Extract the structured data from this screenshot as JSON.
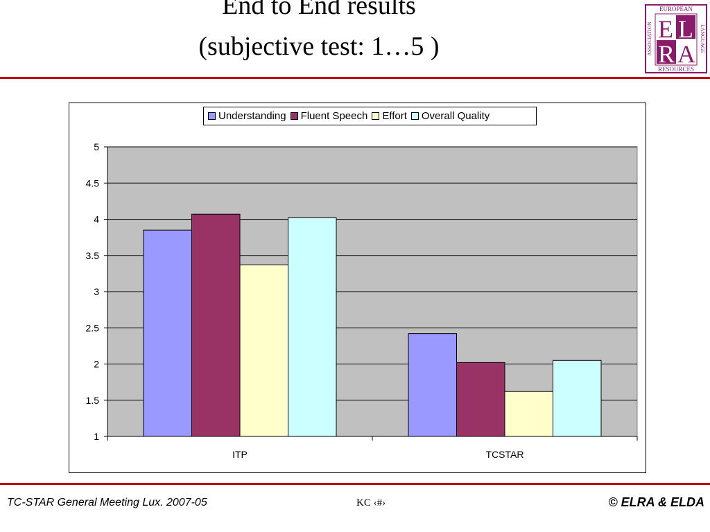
{
  "slide": {
    "title_line1": "End to End results",
    "title_line2": "(subjective test: 1…5 )"
  },
  "logo": {
    "top_text": "EUROPEAN",
    "left_text": "ASSOCIATION",
    "right_text": "LANGUAGE",
    "bottom_text": "RESOURCES",
    "letters": [
      "E",
      "L",
      "R",
      "A"
    ],
    "color": "#8b1a6b"
  },
  "footer": {
    "left": "TC-STAR General Meeting Lux. 2007-05",
    "center": "KC ‹#›",
    "right": "©  ELRA & ELDA"
  },
  "chart_data": {
    "type": "bar",
    "title": "",
    "xlabel": "",
    "ylabel": "",
    "categories": [
      "ITP",
      "TCSTAR"
    ],
    "series": [
      {
        "name": "Understanding",
        "values": [
          3.85,
          2.42
        ],
        "color": "#9999ff"
      },
      {
        "name": "Fluent Speech",
        "values": [
          4.07,
          2.02
        ],
        "color": "#993366"
      },
      {
        "name": "Effort",
        "values": [
          3.37,
          1.62
        ],
        "color": "#ffffcc"
      },
      {
        "name": "Overall Quality",
        "values": [
          4.02,
          2.05
        ],
        "color": "#ccffff"
      }
    ],
    "ylim": [
      1,
      5
    ],
    "yticks": [
      "1",
      "1.5",
      "2",
      "2.5",
      "3",
      "3.5",
      "4",
      "4.5",
      "5"
    ],
    "grid": true,
    "plot_background": "#c0c0c0",
    "legend": "top"
  }
}
